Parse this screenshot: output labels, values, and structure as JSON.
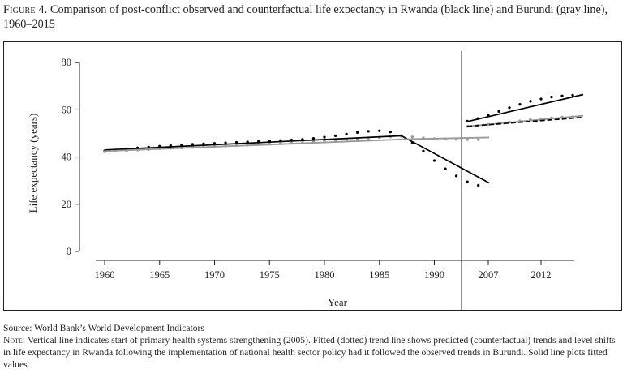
{
  "caption": {
    "label": "Figure 4.",
    "text": " Comparison of post-conflict observed and counterfactual life expectancy in Rwanda (black line) and Burundi (gray line), 1960–2015"
  },
  "footer": {
    "source": "Source: World Bank’s World Development Indicators",
    "note_label": "Note:",
    "note_text": " Vertical line indicates start of primary health systems strengthening (2005). Fitted (dotted) trend line shows predicted (counterfactual) trends and level shifts in life expectancy in Rwanda following the implementation of national health sector policy had it followed the observed trends in Burundi. Solid line plots fitted values."
  },
  "chart_data": {
    "type": "line",
    "title": "",
    "xlabel": "Year",
    "ylabel": "Life expectancy (years)",
    "ylim": [
      0,
      80
    ],
    "yticks": [
      0,
      20,
      40,
      60,
      80
    ],
    "xticks": [
      1960,
      1965,
      1970,
      1975,
      1980,
      1985,
      1990,
      2007,
      2012
    ],
    "grid": false,
    "intervention_line_year": 2005,
    "colors": {
      "rwanda": "#000000",
      "burundi": "#9a9a9a",
      "axis": "#231f20"
    },
    "series": [
      {
        "key": "rwanda_observed",
        "style": "dotted",
        "color": "#000000",
        "x": [
          1960,
          1961,
          1962,
          1963,
          1964,
          1965,
          1966,
          1967,
          1968,
          1969,
          1970,
          1971,
          1972,
          1973,
          1974,
          1975,
          1976,
          1977,
          1978,
          1979,
          1980,
          1981,
          1982,
          1983,
          1984,
          1985,
          1986,
          1987,
          1988,
          1989,
          1990,
          1991,
          1992,
          1993,
          1994,
          2005,
          2006,
          2007,
          2008,
          2009,
          2010,
          2011,
          2012,
          2013,
          2014,
          2015
        ],
        "y": [
          42.6,
          43.0,
          43.5,
          43.9,
          44.2,
          44.6,
          44.9,
          45.2,
          45.4,
          45.6,
          45.8,
          46.0,
          46.2,
          46.4,
          46.6,
          46.8,
          47.0,
          47.2,
          47.5,
          47.9,
          48.4,
          49.0,
          49.7,
          50.4,
          50.9,
          51.1,
          50.6,
          49.0,
          46.0,
          42.5,
          38.5,
          35.0,
          32.0,
          29.5,
          28.0,
          55.2,
          56.3,
          57.7,
          59.3,
          60.9,
          62.3,
          63.6,
          64.6,
          65.4,
          65.9,
          66.2
        ]
      },
      {
        "key": "burundi_observed",
        "style": "dotted",
        "color": "#9a9a9a",
        "x": [
          1960,
          1961,
          1962,
          1963,
          1964,
          1965,
          1966,
          1967,
          1968,
          1969,
          1970,
          1971,
          1972,
          1973,
          1974,
          1975,
          1976,
          1977,
          1978,
          1979,
          1980,
          1981,
          1982,
          1983,
          1984,
          1985,
          1986,
          1987,
          1988,
          1989,
          1990,
          1991,
          1992,
          1993,
          1994,
          2005,
          2006,
          2007,
          2008,
          2009,
          2010,
          2011,
          2012,
          2013,
          2014,
          2015
        ],
        "y": [
          42.2,
          42.5,
          42.7,
          43.0,
          43.2,
          43.5,
          43.7,
          43.9,
          44.1,
          44.3,
          44.5,
          44.7,
          44.9,
          45.1,
          45.3,
          45.5,
          45.7,
          45.9,
          46.2,
          46.5,
          46.8,
          47.1,
          47.4,
          47.7,
          48.0,
          48.3,
          48.6,
          48.8,
          48.5,
          48.1,
          47.8,
          47.6,
          47.5,
          47.4,
          47.4,
          53.0,
          53.3,
          53.8,
          54.3,
          54.8,
          55.3,
          55.8,
          56.2,
          56.6,
          56.9,
          57.0
        ]
      },
      {
        "key": "rwanda_fitted",
        "style": "solid",
        "color": "#000000",
        "x": [
          1960,
          1987,
          1995,
          2005,
          2016
        ],
        "y": [
          43.0,
          49.0,
          29.0,
          55.0,
          66.5
        ]
      },
      {
        "key": "burundi_fitted",
        "style": "solid",
        "color": "#9a9a9a",
        "x": [
          1960,
          1987,
          1995,
          2005,
          2016
        ],
        "y": [
          42.5,
          47.5,
          48.3,
          53.0,
          57.5
        ]
      },
      {
        "key": "counterfactual_fitted",
        "style": "dashed",
        "color": "#000000",
        "x": [
          2005,
          2016
        ],
        "y": [
          53.0,
          56.8
        ]
      }
    ]
  }
}
